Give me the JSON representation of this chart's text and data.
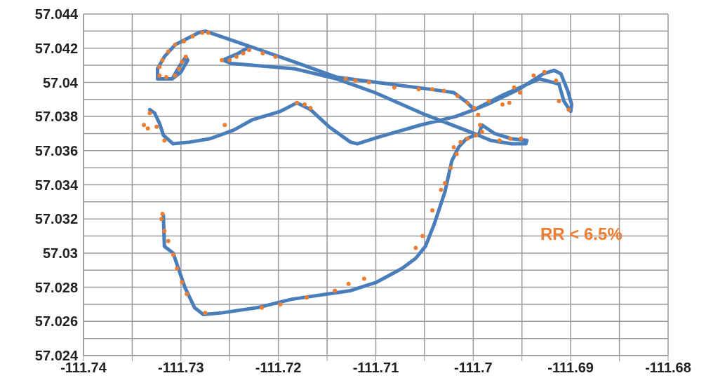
{
  "chart_data": {
    "type": "scatter",
    "xlim": [
      -111.74,
      -111.68
    ],
    "xticks": [
      -111.74,
      {
        "value": -111.735,
        "label": null
      },
      -111.73,
      {
        "value": -111.725,
        "label": null
      },
      -111.72,
      {
        "value": -111.715,
        "label": null
      },
      -111.71,
      {
        "value": -111.705,
        "label": null
      },
      -111.7,
      {
        "value": -111.695,
        "label": null
      },
      -111.69,
      {
        "value": -111.685,
        "label": null
      },
      -111.68
    ],
    "ylim": [
      57.024,
      57.044
    ],
    "yticks": [
      57.024,
      {
        "value": 57.025,
        "label": null
      },
      57.026,
      {
        "value": 57.027,
        "label": null
      },
      57.028,
      {
        "value": 57.029,
        "label": null
      },
      57.03,
      {
        "value": 57.031,
        "label": null
      },
      57.032,
      {
        "value": 57.033,
        "label": null
      },
      57.034,
      {
        "value": 57.035,
        "label": null
      },
      57.036,
      {
        "value": 57.037,
        "label": null
      },
      57.038,
      {
        "value": 57.039,
        "label": null
      },
      57.04,
      {
        "value": 57.041,
        "label": null
      },
      57.042,
      {
        "value": 57.043,
        "label": null
      },
      57.044
    ],
    "grid": true,
    "annotations": [
      "RR < 6.5%"
    ],
    "series": [
      {
        "type": "line",
        "color": "#4a7ebb",
        "marker": "none",
        "line_style": "solid",
        "x": [
          -111.7332,
          -111.7327,
          -111.7322,
          -111.7318,
          -111.7308,
          -111.7291,
          -111.727,
          -111.7246,
          -111.7227,
          -111.7198,
          -111.7181,
          -111.7167,
          -111.7148,
          -111.7126,
          -111.7119,
          -111.7097,
          -111.7054,
          -111.7018,
          -111.6999,
          -111.6982,
          -111.6953,
          -111.6928,
          -111.6917,
          -111.691,
          -111.6903,
          -111.6899,
          -111.69,
          -111.6907,
          -111.6912,
          -111.6932,
          -111.6968,
          -111.6999,
          -111.7006,
          -111.702,
          -111.7045,
          -111.7099,
          -111.714,
          -111.7184,
          -111.7229,
          -111.7275,
          -111.7282,
          -111.7306,
          -111.7317,
          -111.7324,
          -111.7324,
          -111.7309,
          -111.73,
          -111.7293,
          -111.7295,
          -111.7302,
          -111.7309,
          -111.7324,
          -111.7324,
          -111.7317,
          -111.7306,
          -111.7282,
          -111.7275,
          -111.7229,
          -111.7241,
          -111.7257,
          -111.7248,
          -111.7184,
          -111.714,
          -111.7101,
          -111.7049,
          -111.6999,
          -111.6982,
          -111.6961,
          -111.6946,
          -111.6945,
          -111.6961,
          -111.6978,
          -111.6991,
          -111.6994,
          -111.7007,
          -111.7015,
          -111.7022,
          -111.7029,
          -111.704,
          -111.7049,
          -111.7059,
          -111.7073,
          -111.7099,
          -111.7126,
          -111.7186,
          -111.7222,
          -111.7258,
          -111.7277,
          -111.7286,
          -111.7296,
          -111.7308,
          -111.7317,
          -111.7318
        ],
        "values": [
          57.0384,
          57.0382,
          57.0376,
          57.0369,
          57.0364,
          57.0365,
          57.0367,
          57.0372,
          57.0378,
          57.0383,
          57.0388,
          57.0384,
          57.0374,
          57.0365,
          57.0364,
          57.0368,
          57.0375,
          57.038,
          57.0384,
          57.0388,
          57.0396,
          57.0405,
          57.0407,
          57.0405,
          57.0395,
          57.0387,
          57.0383,
          57.0389,
          57.0399,
          57.0402,
          57.0393,
          57.0384,
          57.0388,
          57.0394,
          57.0396,
          57.04,
          57.0403,
          57.0412,
          57.0421,
          57.043,
          57.0429,
          57.0422,
          57.0415,
          57.0408,
          57.0402,
          57.0402,
          57.0406,
          57.0413,
          57.0415,
          57.0409,
          57.0402,
          57.0402,
          57.0408,
          57.0415,
          57.0422,
          57.0429,
          57.043,
          57.0421,
          57.0417,
          57.0413,
          57.0411,
          57.0408,
          57.0402,
          57.0394,
          57.0381,
          57.037,
          57.0366,
          57.0364,
          57.0364,
          57.0366,
          57.0367,
          57.037,
          57.0375,
          57.037,
          57.0367,
          57.0362,
          57.0354,
          57.0336,
          57.0317,
          57.0304,
          57.0297,
          57.0291,
          57.0283,
          57.0278,
          57.0273,
          57.0268,
          57.0265,
          57.0264,
          57.0268,
          57.028,
          57.03,
          57.0304,
          57.0322
        ]
      },
      {
        "type": "scatter",
        "color": "#ed7d31",
        "marker": "circle",
        "x": [
          -111.7322,
          -111.7319,
          -111.7313,
          -111.7306,
          -111.7297,
          -111.7288,
          -111.7278,
          -111.7272,
          -111.7322,
          -111.7315,
          -111.7306,
          -111.7302,
          -111.7299,
          -111.7295,
          -111.7258,
          -111.725,
          -111.7243,
          -111.7236,
          -111.723,
          -111.7216,
          -111.7203,
          -111.7131,
          -111.7121,
          -111.7107,
          -111.7081,
          -111.7056,
          -111.7042,
          -111.703,
          -111.7016,
          -111.7006,
          -111.6999,
          -111.6995,
          -111.6993,
          -111.6991,
          -111.6997,
          -111.7006,
          -111.7013,
          -111.702,
          -111.7017,
          -111.7023,
          -111.7029,
          -111.6973,
          -111.6962,
          -111.6951,
          -111.6984,
          -111.6958,
          -111.6952,
          -111.6963,
          -111.697,
          -111.6938,
          -111.6927,
          -111.6915,
          -111.6912,
          -111.6902,
          -111.7332,
          -111.7338,
          -111.7334,
          -111.7325,
          -111.7317,
          -111.7255,
          -111.7181,
          -111.7173,
          -111.7167,
          -111.7033,
          -111.7042,
          -111.7052,
          -111.7059,
          -111.7112,
          -111.7128,
          -111.7142,
          -111.7171,
          -111.7198,
          -111.7217,
          -111.7275,
          -111.7294,
          -111.7299,
          -111.7304,
          -111.7308,
          -111.7313,
          -111.7317,
          -111.732,
          -111.7319
        ],
        "values": [
          57.0409,
          57.0413,
          57.0418,
          57.0422,
          57.0424,
          57.0427,
          57.0429,
          57.0429,
          57.0404,
          57.0403,
          57.0404,
          57.0408,
          57.0412,
          57.0415,
          57.0413,
          57.0413,
          57.0415,
          57.0417,
          57.0419,
          57.0417,
          57.0415,
          57.0402,
          57.0401,
          57.04,
          57.0397,
          57.0396,
          57.0396,
          57.0395,
          57.0392,
          57.0388,
          57.0385,
          57.0381,
          57.0375,
          57.0371,
          57.0369,
          57.0367,
          57.0365,
          57.0362,
          57.0358,
          57.035,
          57.0341,
          57.0366,
          57.0367,
          57.0367,
          57.0389,
          57.0397,
          57.0394,
          57.0388,
          57.0387,
          57.0404,
          57.0406,
          57.0401,
          57.0389,
          57.0384,
          57.0382,
          57.0375,
          57.0373,
          57.0374,
          57.0366,
          57.0375,
          57.0388,
          57.0387,
          57.0385,
          57.0337,
          57.0325,
          57.031,
          57.0303,
          57.0285,
          57.0282,
          57.0278,
          57.0274,
          57.027,
          57.0268,
          57.0265,
          57.0276,
          57.0283,
          57.0291,
          57.0299,
          57.0307,
          57.0313,
          57.032,
          57.0323
        ]
      }
    ]
  }
}
